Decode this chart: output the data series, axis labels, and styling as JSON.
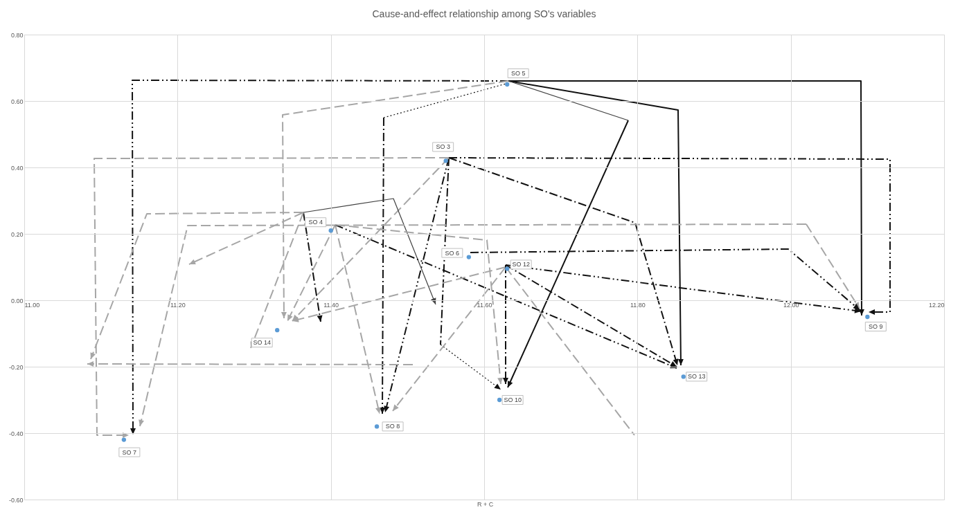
{
  "chart_data": {
    "type": "scatter",
    "title": "Cause-and-effect relationship among SO's variables",
    "xlabel": "R + C",
    "color": "#5b9bd5",
    "marker": "circle",
    "grid": true,
    "x": [
      11.55,
      11.4,
      11.63,
      11.58,
      11.13,
      11.46,
      12.1,
      11.62,
      11.63,
      11.86,
      11.33
    ],
    "values": [
      0.42,
      0.21,
      0.65,
      0.13,
      -0.42,
      -0.38,
      -0.05,
      -0.3,
      0.095,
      -0.23,
      -0.09
    ],
    "xlim": [
      11,
      12.2
    ],
    "ylim": [
      -0.6,
      0.8
    ],
    "xticks": [
      {
        "value": 11,
        "label": "11.00"
      },
      {
        "value": 11.2,
        "label": "11.20"
      },
      {
        "value": 11.4,
        "label": "11.40"
      },
      {
        "value": 11.6,
        "label": "11.60"
      },
      {
        "value": 11.8,
        "label": "11.80"
      },
      {
        "value": 12,
        "label": "12.00"
      },
      {
        "value": 12.2,
        "label": "12.20"
      }
    ],
    "yticks": [
      {
        "value": -0.6,
        "label": "-0.60"
      },
      {
        "value": -0.4,
        "label": "-0.40"
      },
      {
        "value": -0.2,
        "label": "-0.20"
      },
      {
        "value": 0,
        "label": "0.00"
      },
      {
        "value": 0.2,
        "label": "0.20"
      },
      {
        "value": 0.4,
        "label": "0.40"
      },
      {
        "value": 0.6,
        "label": "0.60"
      },
      {
        "value": 0.8,
        "label": "0.80"
      }
    ],
    "annotations": [
      {
        "text": "SO 3",
        "x": 11.55,
        "y": 0.42
      },
      {
        "text": "SO 4",
        "x": 11.4,
        "y": 0.21
      },
      {
        "text": "SO 5",
        "x": 11.63,
        "y": 0.65
      },
      {
        "text": "SO 6",
        "x": 11.58,
        "y": 0.13
      },
      {
        "text": "SO 7",
        "x": 11.13,
        "y": -0.42
      },
      {
        "text": "SO 8",
        "x": 11.46,
        "y": -0.38
      },
      {
        "text": "SO 9",
        "x": 12.1,
        "y": -0.05
      },
      {
        "text": "SO 10",
        "x": 11.62,
        "y": -0.3
      },
      {
        "text": "SO 12",
        "x": 11.63,
        "y": 0.095
      },
      {
        "text": "SO 13",
        "x": 11.86,
        "y": -0.23
      },
      {
        "text": "SO 14",
        "x": 11.33,
        "y": -0.09
      }
    ]
  }
}
